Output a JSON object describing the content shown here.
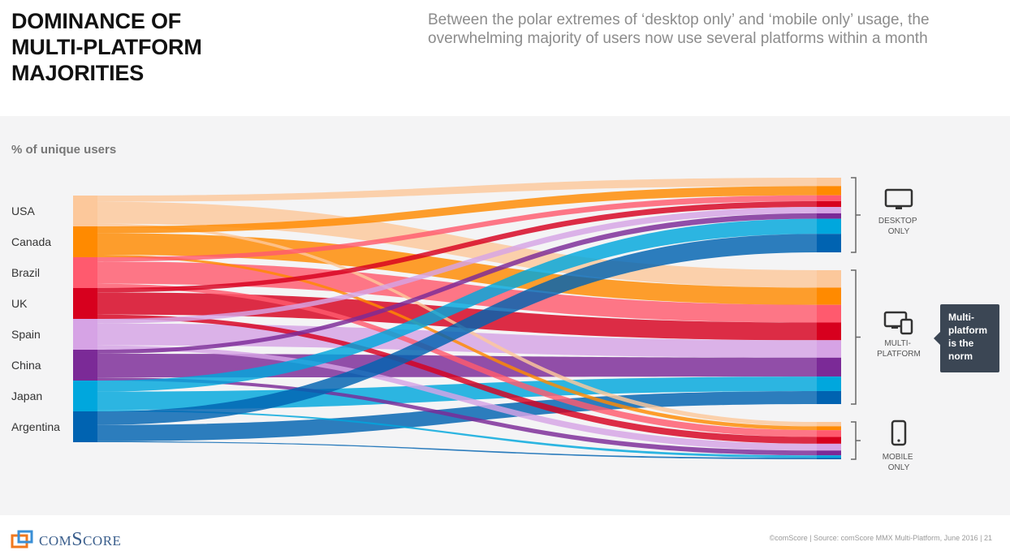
{
  "header": {
    "title": "DOMINANCE OF\nMULTI-PLATFORM\nMAJORITIES",
    "subtitle": "Between the polar extremes of ‘desktop only’ and ‘mobile only’ usage, the overwhelming majority of users now use several platforms within a month"
  },
  "callout": "Multi-platform is the norm",
  "footer": {
    "logo_text": "comScore",
    "note": "©comScore  |  Source: comScore MMX Multi-Platform, June 2016  |     21"
  },
  "chart_data": {
    "type": "sankey",
    "ylabel": "% of unique users",
    "sources": [
      "USA",
      "Canada",
      "Brazil",
      "UK",
      "Spain",
      "China",
      "Japan",
      "Argentina"
    ],
    "targets": [
      "DESKTOP ONLY",
      "MULTI-PLATFORM",
      "MOBILE ONLY"
    ],
    "colors": [
      "#fcc89b",
      "#ff8a00",
      "#ff5a6e",
      "#d7001e",
      "#d6a3e5",
      "#7b2a97",
      "#00a7dd",
      "#0063b1"
    ],
    "values": {
      "USA": [
        20,
        71,
        9
      ],
      "Canada": [
        22,
        70,
        8
      ],
      "Brazil": [
        14,
        72,
        14
      ],
      "UK": [
        14,
        72,
        14
      ],
      "Spain": [
        15,
        71,
        14
      ],
      "China": [
        13,
        77,
        10
      ],
      "Japan": [
        36,
        59,
        5
      ],
      "Argentina": [
        44,
        53,
        3
      ]
    }
  },
  "icons": {
    "desktop": "monitor-icon",
    "multi": "multi-device-icon",
    "mobile": "phone-icon"
  }
}
